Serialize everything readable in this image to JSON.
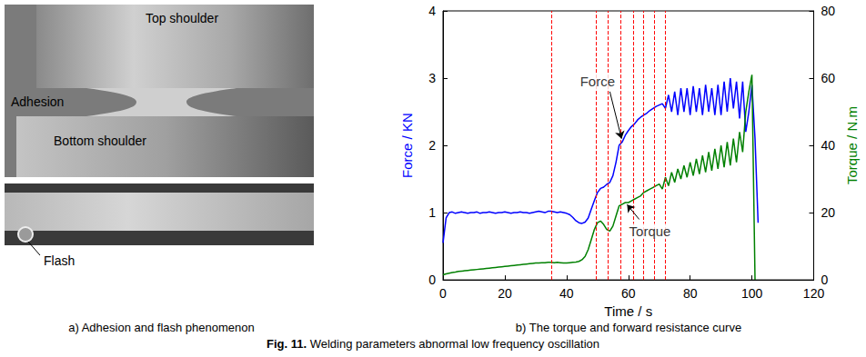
{
  "chart_data": {
    "type": "line",
    "title": "b) The torque and forward resistance curve",
    "x_label": "Time / s",
    "y_label": "Force / KN",
    "y2_label": "Torque / N.m",
    "xlim": [
      0,
      120
    ],
    "xticks": [
      0,
      20,
      40,
      60,
      80,
      100,
      120
    ],
    "ylim": [
      0,
      4
    ],
    "yticks": [
      0,
      1,
      2,
      3,
      4
    ],
    "y2lim": [
      0,
      80
    ],
    "y2ticks": [
      0,
      20,
      40,
      60,
      80
    ],
    "grid": false,
    "x": [
      0,
      1,
      2,
      3,
      4,
      5,
      6,
      7,
      8,
      9,
      10,
      11,
      12,
      13,
      14,
      15,
      16,
      17,
      18,
      19,
      20,
      21,
      22,
      23,
      24,
      25,
      26,
      27,
      28,
      29,
      30,
      31,
      32,
      33,
      34,
      35,
      36,
      37,
      38,
      39,
      40,
      41,
      42,
      43,
      44,
      45,
      46,
      47,
      48,
      49,
      50,
      51,
      52,
      53,
      54,
      55,
      56,
      57,
      58,
      59,
      60,
      61,
      62,
      63,
      64,
      65,
      66,
      67,
      68,
      69,
      70,
      71,
      72,
      73,
      74,
      75,
      76,
      77,
      78,
      79,
      80,
      81,
      82,
      83,
      84,
      85,
      86,
      87,
      88,
      89,
      90,
      91,
      92,
      93,
      94,
      95,
      96,
      97,
      98,
      99,
      100,
      101,
      102
    ],
    "series": [
      {
        "name": "Force",
        "color": "#0000ff",
        "axis": "y",
        "marker": "none",
        "line_style": "solid",
        "values": [
          0.55,
          0.92,
          1.0,
          1.01,
          0.99,
          1.0,
          1.01,
          1.0,
          0.99,
          1.0,
          1.0,
          1.01,
          0.99,
          1.0,
          1.0,
          1.01,
          1.0,
          0.99,
          1.0,
          1.0,
          1.01,
          1.0,
          0.99,
          1.0,
          1.0,
          1.01,
          1.0,
          1.0,
          0.99,
          1.0,
          1.01,
          1.02,
          1.01,
          1.0,
          1.02,
          1.02,
          1.01,
          1.0,
          1.01,
          1.0,
          0.99,
          0.97,
          0.93,
          0.88,
          0.85,
          0.84,
          0.86,
          0.92,
          1.05,
          1.18,
          1.3,
          1.36,
          1.38,
          1.42,
          1.45,
          1.55,
          1.75,
          2.0,
          2.05,
          2.15,
          2.22,
          2.28,
          2.32,
          2.38,
          2.42,
          2.45,
          2.48,
          2.52,
          2.55,
          2.58,
          2.6,
          2.62,
          2.55,
          2.75,
          2.5,
          2.8,
          2.45,
          2.85,
          2.5,
          2.85,
          2.45,
          2.88,
          2.5,
          2.85,
          2.45,
          2.9,
          2.5,
          2.85,
          2.45,
          2.9,
          2.45,
          2.95,
          2.5,
          3.0,
          2.55,
          2.95,
          2.4,
          2.95,
          2.2,
          2.5,
          2.9,
          2.1,
          0.85
        ]
      },
      {
        "name": "Torque",
        "color": "#008000",
        "axis": "y2",
        "marker": "none",
        "line_style": "solid",
        "values": [
          1.5,
          1.8,
          2.0,
          2.2,
          2.3,
          2.5,
          2.6,
          2.7,
          2.8,
          2.9,
          3.0,
          3.1,
          3.2,
          3.3,
          3.4,
          3.5,
          3.6,
          3.7,
          3.8,
          3.9,
          4.0,
          4.1,
          4.2,
          4.3,
          4.4,
          4.5,
          4.6,
          4.7,
          4.8,
          4.9,
          5.0,
          5.0,
          5.1,
          5.1,
          5.2,
          5.2,
          5.1,
          5.2,
          5.1,
          5.0,
          5.0,
          5.1,
          5.2,
          5.3,
          5.5,
          6.0,
          7.0,
          9.0,
          12.0,
          15.0,
          17.0,
          17.5,
          16.5,
          15.0,
          14.5,
          16.0,
          19.0,
          22.0,
          22.5,
          23.0,
          23.0,
          23.5,
          24.0,
          24.5,
          25.0,
          26.0,
          26.5,
          27.0,
          27.5,
          28.0,
          28.5,
          27.0,
          30.5,
          28.0,
          32.0,
          29.0,
          33.0,
          30.0,
          34.0,
          30.5,
          35.0,
          31.0,
          36.0,
          31.5,
          37.0,
          32.0,
          38.0,
          32.5,
          39.0,
          33.0,
          40.0,
          33.5,
          41.0,
          34.0,
          42.0,
          35.0,
          44.0,
          38.0,
          50.0,
          56.0,
          61.0,
          0.0,
          null
        ]
      }
    ],
    "reference_lines": {
      "x": [
        35,
        49.5,
        53.5,
        57.5,
        61.5,
        65,
        68.5,
        72
      ],
      "color": "#ff0000",
      "line_style": "dashed"
    },
    "annotations": [
      {
        "text": "Force",
        "axis": "y",
        "x": 50,
        "y": 2.95,
        "arrow_from": [
          54,
          2.8
        ],
        "arrow_to": [
          57.8,
          2.1
        ]
      },
      {
        "text": "Torque",
        "axis": "y",
        "x": 67,
        "y": 0.72,
        "arrow_from": [
          63.5,
          0.9
        ],
        "arrow_to": [
          59.6,
          1.12
        ]
      }
    ]
  },
  "panel_a": {
    "caption": "a) Adhesion and flash phenomenon",
    "labels": {
      "top_shoulder": "Top shoulder",
      "adhesion": "Adhesion",
      "bottom_shoulder": "Bottom shoulder",
      "flash": "Flash"
    }
  },
  "figure_caption": {
    "label": "Fig. 11.",
    "text": "Welding parameters abnormal low frequency oscillation"
  }
}
